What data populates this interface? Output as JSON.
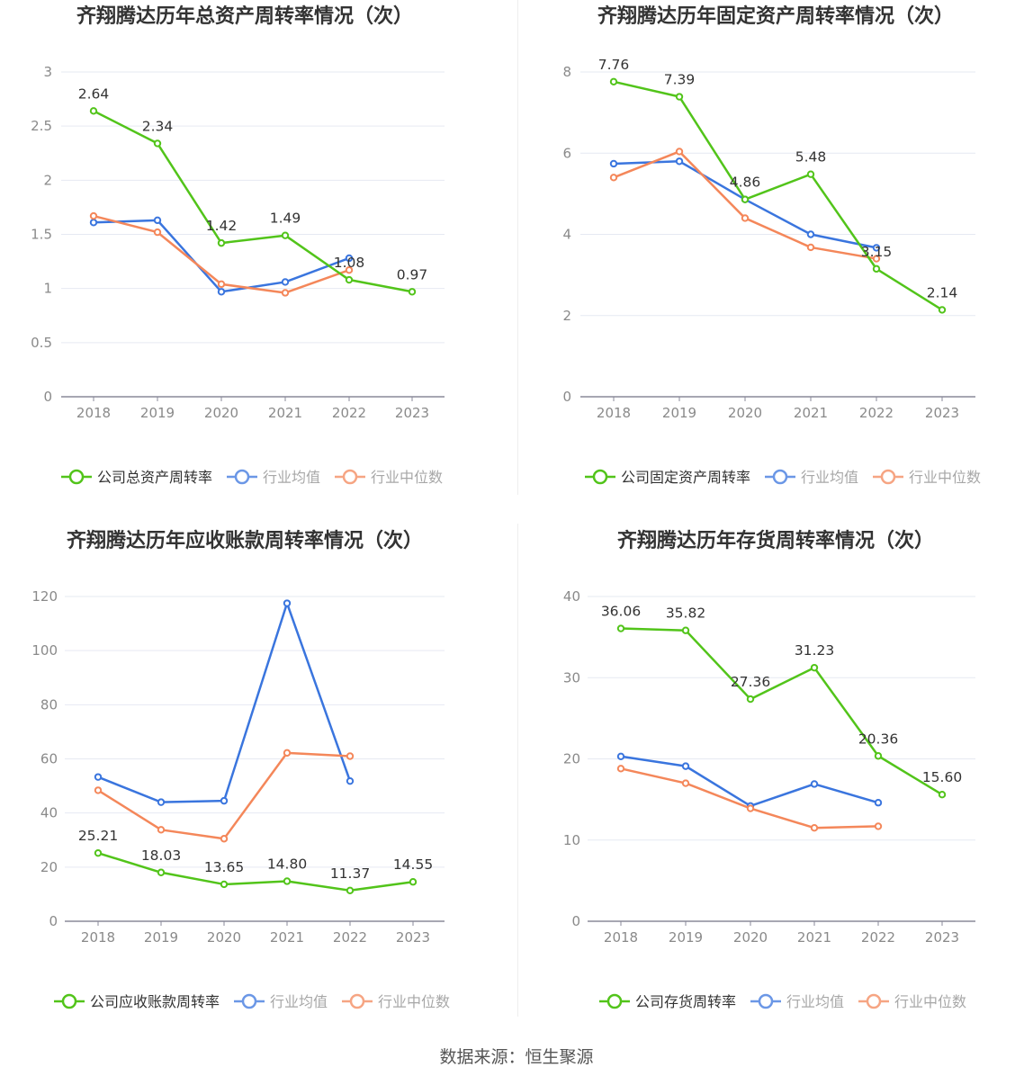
{
  "colors": {
    "company": "#52c41a",
    "industry_avg": "#3a75de",
    "industry_median": "#f4875a",
    "axis": "#8a8a99",
    "grid": "#e6e9f2",
    "tick_text": "#8a8a8a",
    "label_text": "#333333",
    "title_text": "#333333"
  },
  "source": "数据来源：恒生聚源",
  "chart_data": [
    {
      "type": "line",
      "title": "齐翔腾达历年总资产周转率情况（次）",
      "categories": [
        "2018",
        "2019",
        "2020",
        "2021",
        "2022",
        "2023"
      ],
      "ylim": [
        0,
        3
      ],
      "yticks": [
        "0",
        "0.5",
        "1",
        "1.5",
        "2",
        "2.5",
        "3"
      ],
      "ytick_values": [
        0,
        0.5,
        1,
        1.5,
        2,
        2.5,
        3
      ],
      "legend_position": "bottom",
      "series": [
        {
          "name": "公司总资产周转率",
          "role": "company",
          "values": [
            2.64,
            2.34,
            1.42,
            1.49,
            1.08,
            0.97
          ],
          "labels": [
            "2.64",
            "2.34",
            "1.42",
            "1.49",
            "1.08",
            "0.97"
          ]
        },
        {
          "name": "行业均值",
          "role": "industry_avg",
          "values": [
            1.61,
            1.63,
            0.97,
            1.06,
            1.28,
            null
          ]
        },
        {
          "name": "行业中位数",
          "role": "industry_median",
          "values": [
            1.67,
            1.52,
            1.04,
            0.96,
            1.17,
            null
          ]
        }
      ]
    },
    {
      "type": "line",
      "title": "齐翔腾达历年固定资产周转率情况（次）",
      "categories": [
        "2018",
        "2019",
        "2020",
        "2021",
        "2022",
        "2023"
      ],
      "ylim": [
        0,
        8
      ],
      "yticks": [
        "0",
        "2",
        "4",
        "6",
        "8"
      ],
      "ytick_values": [
        0,
        2,
        4,
        6,
        8
      ],
      "legend_position": "bottom",
      "series": [
        {
          "name": "公司固定资产周转率",
          "role": "company",
          "values": [
            7.76,
            7.39,
            4.86,
            5.48,
            3.15,
            2.14
          ],
          "labels": [
            "7.76",
            "7.39",
            "4.86",
            "5.48",
            "3.15",
            "2.14"
          ]
        },
        {
          "name": "行业均值",
          "role": "industry_avg",
          "values": [
            5.74,
            5.8,
            4.86,
            4.0,
            3.67,
            null
          ]
        },
        {
          "name": "行业中位数",
          "role": "industry_median",
          "values": [
            5.4,
            6.04,
            4.4,
            3.68,
            3.4,
            null
          ]
        }
      ]
    },
    {
      "type": "line",
      "title": "齐翔腾达历年应收账款周转率情况（次）",
      "categories": [
        "2018",
        "2019",
        "2020",
        "2021",
        "2022",
        "2023"
      ],
      "ylim": [
        0,
        120
      ],
      "yticks": [
        "0",
        "20",
        "40",
        "60",
        "80",
        "100",
        "120"
      ],
      "ytick_values": [
        0,
        20,
        40,
        60,
        80,
        100,
        120
      ],
      "legend_position": "bottom",
      "series": [
        {
          "name": "公司应收账款周转率",
          "role": "company",
          "values": [
            25.21,
            18.03,
            13.65,
            14.8,
            11.37,
            14.55
          ],
          "labels": [
            "25.21",
            "18.03",
            "13.65",
            "14.80",
            "11.37",
            "14.55"
          ]
        },
        {
          "name": "行业均值",
          "role": "industry_avg",
          "values": [
            53.3,
            44.0,
            44.5,
            117.5,
            51.8,
            null
          ]
        },
        {
          "name": "行业中位数",
          "role": "industry_median",
          "values": [
            48.4,
            33.8,
            30.5,
            62.2,
            61.0,
            null
          ]
        }
      ]
    },
    {
      "type": "line",
      "title": "齐翔腾达历年存货周转率情况（次）",
      "categories": [
        "2018",
        "2019",
        "2020",
        "2021",
        "2022",
        "2023"
      ],
      "ylim": [
        0,
        40
      ],
      "yticks": [
        "0",
        "10",
        "20",
        "30",
        "40"
      ],
      "ytick_values": [
        0,
        10,
        20,
        30,
        40
      ],
      "legend_position": "bottom",
      "series": [
        {
          "name": "公司存货周转率",
          "role": "company",
          "values": [
            36.06,
            35.82,
            27.36,
            31.23,
            20.36,
            15.6
          ],
          "labels": [
            "36.06",
            "35.82",
            "27.36",
            "31.23",
            "20.36",
            "15.60"
          ]
        },
        {
          "name": "行业均值",
          "role": "industry_avg",
          "values": [
            20.3,
            19.1,
            14.2,
            16.9,
            14.6,
            null
          ]
        },
        {
          "name": "行业中位数",
          "role": "industry_median",
          "values": [
            18.8,
            17.0,
            13.9,
            11.5,
            11.7,
            null
          ]
        }
      ]
    }
  ]
}
